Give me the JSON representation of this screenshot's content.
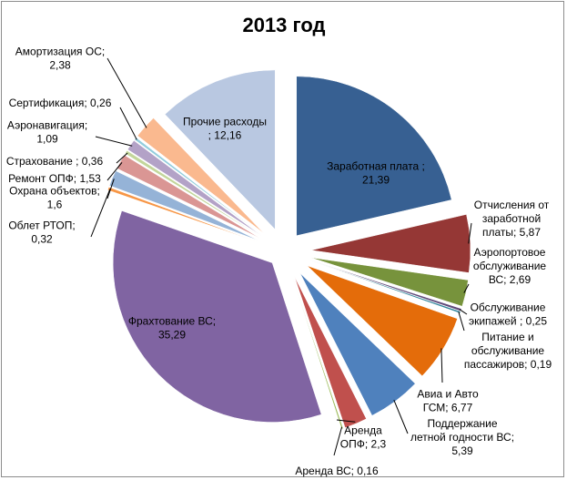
{
  "chart_data": {
    "type": "pie",
    "title": "2013 год",
    "exploded": true,
    "slices": [
      {
        "label": "Заработная плата",
        "value": 21.39,
        "color": "#376092",
        "lines": [
          "Заработная плата ;",
          "21,39"
        ],
        "text_color": "#000000"
      },
      {
        "label": "Отчисления от заработной платы",
        "value": 5.87,
        "color": "#953735",
        "lines": [
          "Отчисления от",
          "заработной",
          "платы; 5,87"
        ],
        "text_color": "#000000"
      },
      {
        "label": "Аэропортовое обслуживание ВС",
        "value": 2.69,
        "color": "#77933c",
        "lines": [
          "Аэропортовое",
          "обслуживание",
          "ВС; 2,69"
        ],
        "text_color": "#000000"
      },
      {
        "label": "Обслуживание экипажей",
        "value": 0.25,
        "color": "#5f497a",
        "lines": [
          "Обслуживание",
          "экипажей ; 0,25"
        ],
        "text_color": "#000000"
      },
      {
        "label": "Питание и обслуживание пассажиров",
        "value": 0.19,
        "color": "#31859c",
        "lines": [
          "Питание и",
          "обслуживание",
          "пассажиров; 0,19"
        ],
        "text_color": "#000000"
      },
      {
        "label": "Авиа и Авто ГСМ",
        "value": 6.77,
        "color": "#e46c0a",
        "lines": [
          "Авиа и Авто",
          "ГСМ; 6,77"
        ],
        "text_color": "#000000"
      },
      {
        "label": "Поддержание летной годности ВС",
        "value": 5.39,
        "color": "#4f81bd",
        "lines": [
          "Поддержание",
          "летной годности ВС;",
          "5,39"
        ],
        "text_color": "#000000"
      },
      {
        "label": "Аренда ОПФ",
        "value": 2.3,
        "color": "#c0504d",
        "lines": [
          "Аренда",
          "ОПФ; 2,3"
        ],
        "text_color": "#000000"
      },
      {
        "label": "Аренда ВС",
        "value": 0.16,
        "color": "#9bbb59",
        "lines": [
          "Аренда ВС; 0,16"
        ],
        "text_color": "#000000"
      },
      {
        "label": "Фрахтование ВС",
        "value": 35.29,
        "color": "#8064a2",
        "lines": [
          "Фрахтование ВС;",
          "35,29"
        ],
        "text_color": "#000000"
      },
      {
        "label": "Облет РТОП",
        "value": 0.32,
        "color": "#f79646",
        "lines": [
          "Облет РТОП;",
          "0,32"
        ],
        "text_color": "#000000"
      },
      {
        "label": "Охрана объектов",
        "value": 1.6,
        "color": "#95b3d7",
        "lines": [
          "Охрана объектов;",
          "1,6"
        ],
        "text_color": "#000000"
      },
      {
        "label": "Ремонт ОПФ",
        "value": 1.53,
        "color": "#da9694",
        "lines": [
          "Ремонт ОПФ; 1,53"
        ],
        "text_color": "#000000"
      },
      {
        "label": "Страхование",
        "value": 0.36,
        "color": "#c3d69b",
        "lines": [
          "Страхование ; 0,36"
        ],
        "text_color": "#000000"
      },
      {
        "label": "Аэронавигация",
        "value": 1.09,
        "color": "#b3a2c7",
        "lines": [
          "Аэронавигация;",
          "1,09"
        ],
        "text_color": "#000000"
      },
      {
        "label": "Сертификация",
        "value": 0.26,
        "color": "#93cddd",
        "lines": [
          "Сертификация; 0,26"
        ],
        "text_color": "#000000"
      },
      {
        "label": "Амортизация ОС",
        "value": 2.38,
        "color": "#fab98f",
        "lines": [
          "Амортизация ОС;",
          "2,38"
        ],
        "text_color": "#000000"
      },
      {
        "label": "Прочие расходы",
        "value": 12.16,
        "color": "#b9c8e1",
        "lines": [
          "Прочие расходы",
          "; 12,16"
        ],
        "text_color": "#000000"
      }
    ]
  }
}
